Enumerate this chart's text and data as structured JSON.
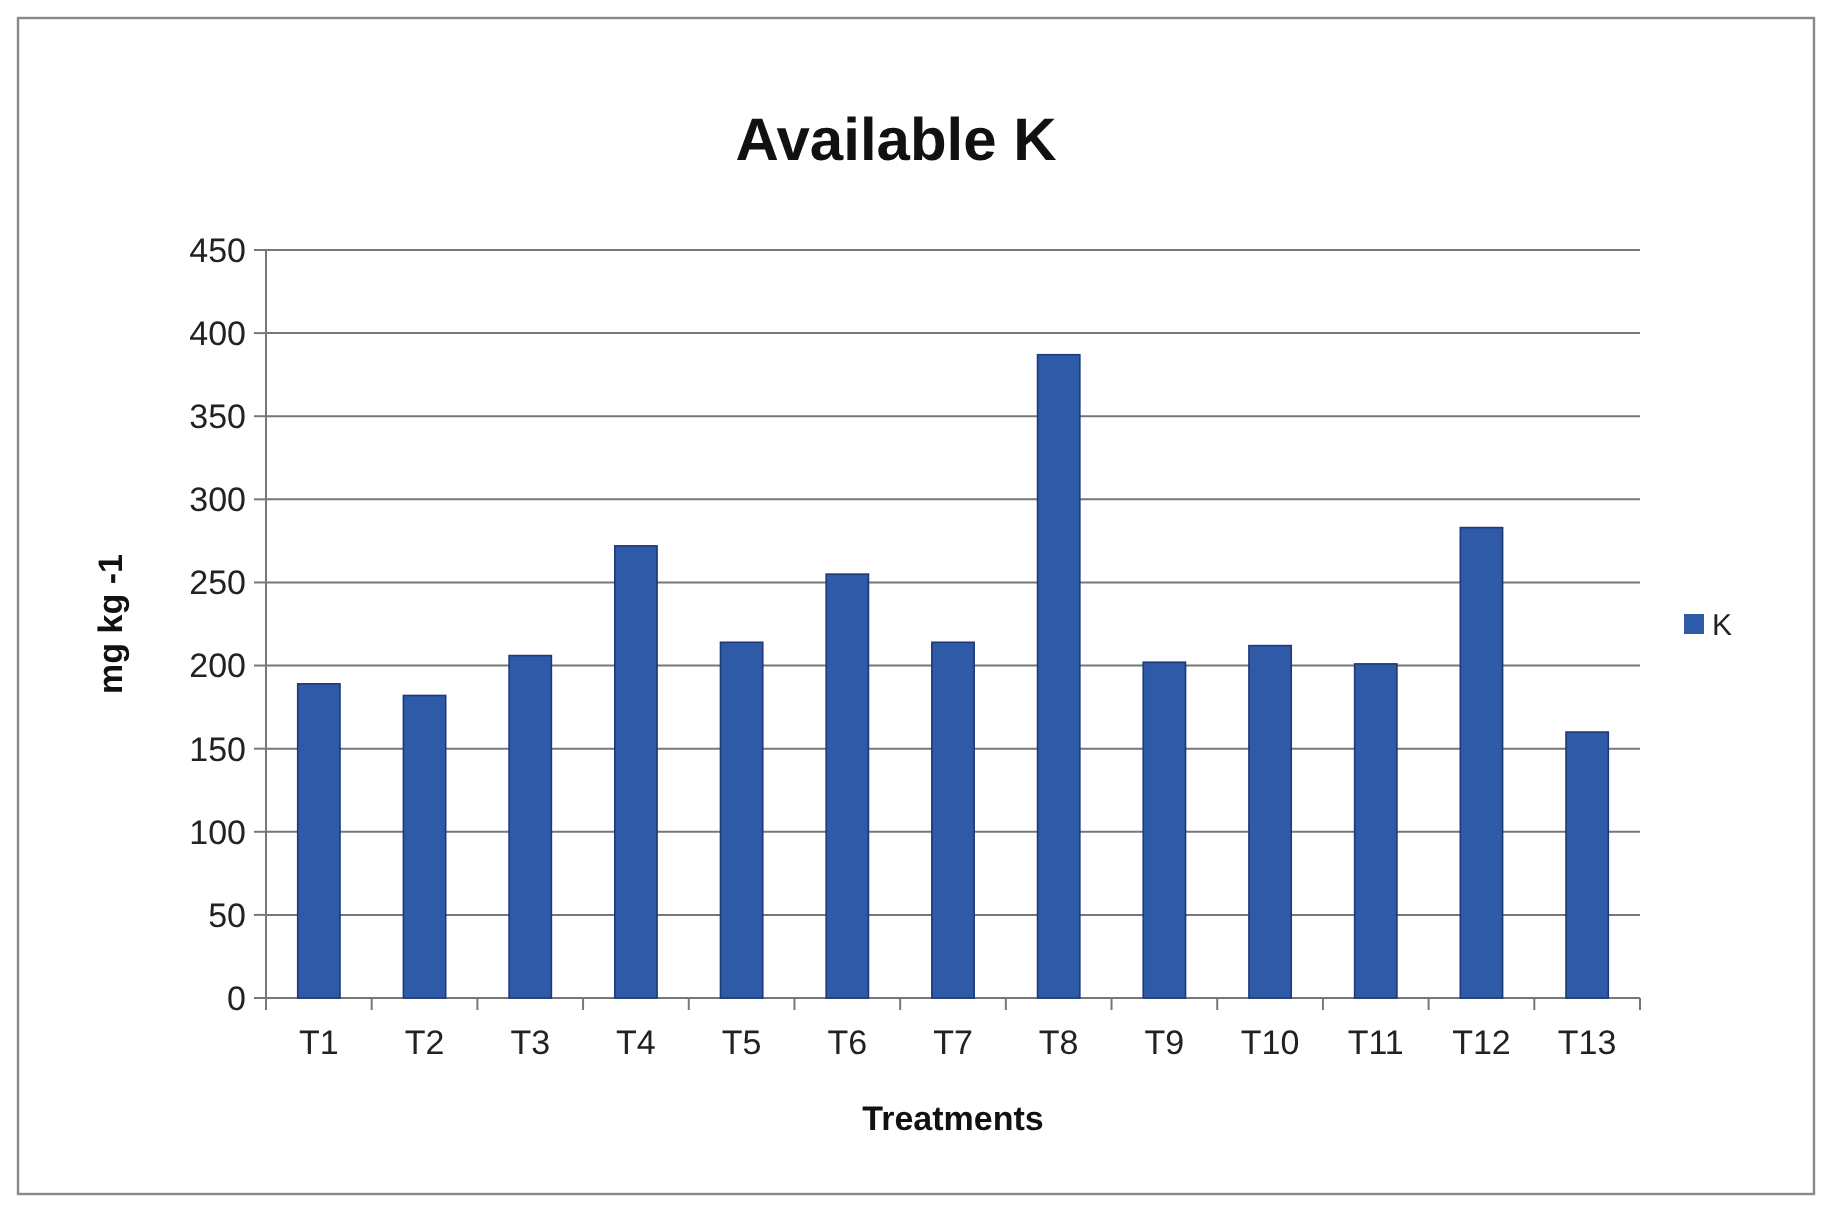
{
  "chart_data": {
    "type": "bar",
    "title": "Available K",
    "xlabel": "Treatments",
    "ylabel": "mg kg -1",
    "categories": [
      "T1",
      "T2",
      "T3",
      "T4",
      "T5",
      "T6",
      "T7",
      "T8",
      "T9",
      "T10",
      "T11",
      "T12",
      "T13"
    ],
    "series": [
      {
        "name": "K",
        "color": "#2e5aa8",
        "values": [
          189,
          182,
          206,
          272,
          214,
          255,
          214,
          387,
          202,
          212,
          201,
          283,
          160
        ]
      }
    ],
    "ylim": [
      0,
      450
    ],
    "yticks": [
      0,
      50,
      100,
      150,
      200,
      250,
      300,
      350,
      400,
      450
    ],
    "grid": "y",
    "legend": "right"
  }
}
